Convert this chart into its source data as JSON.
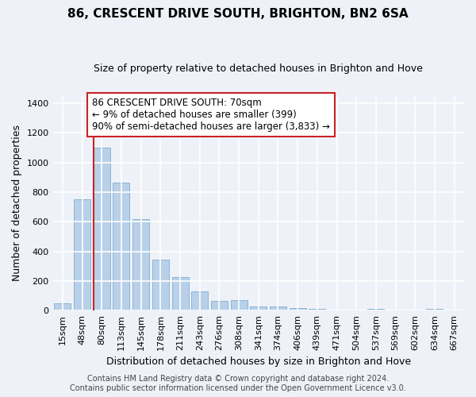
{
  "title": "86, CRESCENT DRIVE SOUTH, BRIGHTON, BN2 6SA",
  "subtitle": "Size of property relative to detached houses in Brighton and Hove",
  "xlabel": "Distribution of detached houses by size in Brighton and Hove",
  "ylabel": "Number of detached properties",
  "footer1": "Contains HM Land Registry data © Crown copyright and database right 2024.",
  "footer2": "Contains public sector information licensed under the Open Government Licence v3.0.",
  "categories": [
    "15sqm",
    "48sqm",
    "80sqm",
    "113sqm",
    "145sqm",
    "178sqm",
    "211sqm",
    "243sqm",
    "276sqm",
    "308sqm",
    "341sqm",
    "374sqm",
    "406sqm",
    "439sqm",
    "471sqm",
    "504sqm",
    "537sqm",
    "569sqm",
    "602sqm",
    "634sqm",
    "667sqm"
  ],
  "values": [
    50,
    750,
    1100,
    865,
    615,
    345,
    228,
    130,
    65,
    70,
    28,
    28,
    18,
    12,
    0,
    0,
    10,
    0,
    0,
    12,
    0
  ],
  "bar_color": "#b8d0e8",
  "bar_edge_color": "#8ab4d4",
  "vline_x": 2,
  "vline_color": "#cc2222",
  "annotation_text": "86 CRESCENT DRIVE SOUTH: 70sqm\n← 9% of detached houses are smaller (399)\n90% of semi-detached houses are larger (3,833) →",
  "annotation_box_facecolor": "#ffffff",
  "annotation_box_edgecolor": "#cc2222",
  "background_color": "#eef2f8",
  "grid_color": "#ffffff",
  "ylim": [
    0,
    1450
  ],
  "yticks": [
    0,
    200,
    400,
    600,
    800,
    1000,
    1200,
    1400
  ],
  "title_fontsize": 11,
  "subtitle_fontsize": 9,
  "ylabel_fontsize": 9,
  "xlabel_fontsize": 9,
  "tick_fontsize": 8,
  "footer_fontsize": 7,
  "ann_fontsize": 8.5
}
